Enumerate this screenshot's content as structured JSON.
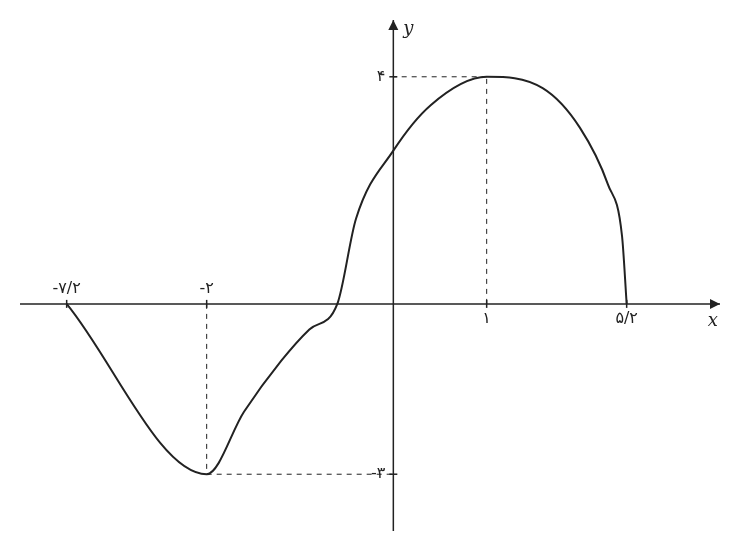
{
  "chart_data": {
    "type": "line",
    "x_label": "x",
    "y_label": "y",
    "x": [
      -3.5,
      -2,
      -1.6,
      -1.2,
      -0.9,
      -0.6,
      -0.4,
      0,
      0.4,
      1,
      1.6,
      2,
      2.3,
      2.45,
      2.5
    ],
    "values": [
      0,
      -3,
      -1.9,
      -1.0,
      -0.45,
      0,
      1.5,
      2.7,
      3.5,
      4,
      3.8,
      3.1,
      2.1,
      1.2,
      0
    ],
    "color": "#222222",
    "xlim": [
      -4,
      3.5
    ],
    "ylim": [
      -4,
      5
    ],
    "xticks": [
      {
        "value": -3.5,
        "label": "-۷/۲"
      },
      {
        "value": -2,
        "label": "-۲"
      },
      {
        "value": 1,
        "label": "۱"
      },
      {
        "value": 2.5,
        "label": "۵/۲"
      }
    ],
    "yticks": [
      {
        "value": -3,
        "label": "-۳"
      },
      {
        "value": 4,
        "label": "۴"
      }
    ],
    "guide_points": [
      {
        "x": 1,
        "y": 4
      },
      {
        "x": -2,
        "y": -3
      }
    ],
    "grid": false
  }
}
